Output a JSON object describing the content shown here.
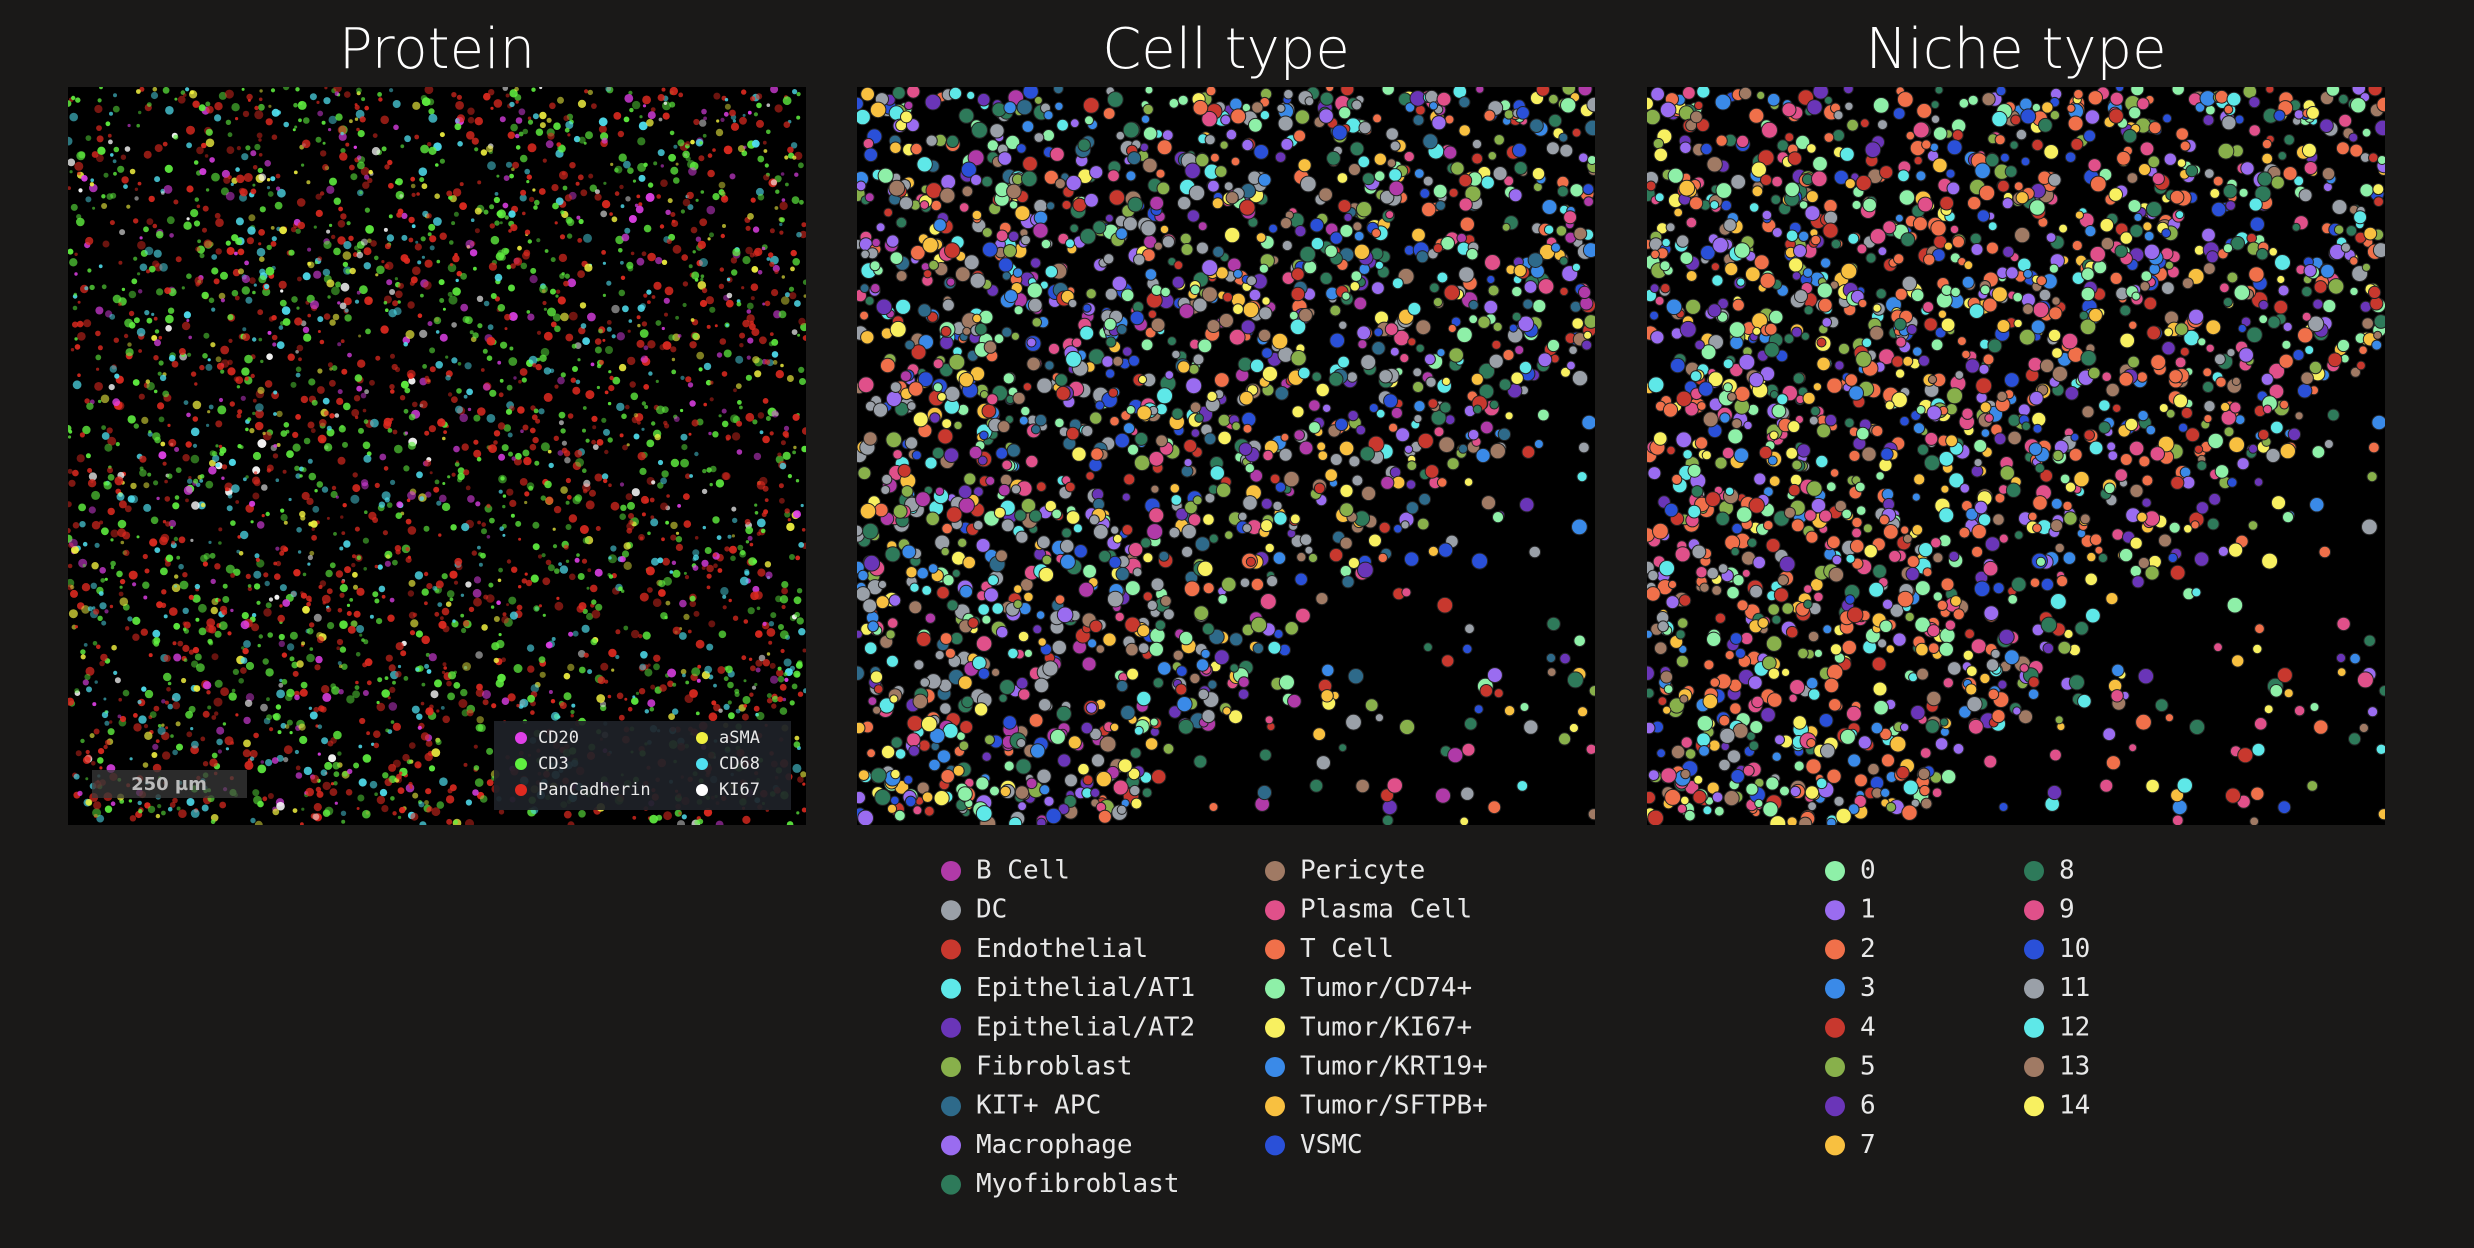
{
  "panels": [
    {
      "title": "Protein",
      "scale_bar": "250 µm",
      "legend": [
        {
          "label": "CD20",
          "color": "#e040e8"
        },
        {
          "label": "CD3",
          "color": "#60f040"
        },
        {
          "label": "PanCadherin",
          "color": "#e02a20"
        },
        {
          "label": "aSMA",
          "color": "#f0f040"
        },
        {
          "label": "CD68",
          "color": "#50e0f0"
        },
        {
          "label": "KI67",
          "color": "#ffffff"
        }
      ]
    },
    {
      "title": "Cell type",
      "legend": [
        {
          "label": "B Cell",
          "color": "#b03aa8"
        },
        {
          "label": "DC",
          "color": "#9aa0a8"
        },
        {
          "label": "Endothelial",
          "color": "#c8382e"
        },
        {
          "label": "Epithelial/AT1",
          "color": "#5ee8e8"
        },
        {
          "label": "Epithelial/AT2",
          "color": "#6a35b8"
        },
        {
          "label": "Fibroblast",
          "color": "#88b04b"
        },
        {
          "label": "KIT+ APC",
          "color": "#2e6a8a"
        },
        {
          "label": "Macrophage",
          "color": "#9a6cf0"
        },
        {
          "label": "Myofibroblast",
          "color": "#2e7a5a"
        },
        {
          "label": "Pericyte",
          "color": "#a07a64"
        },
        {
          "label": "Plasma Cell",
          "color": "#e0508a"
        },
        {
          "label": "T Cell",
          "color": "#f0704a"
        },
        {
          "label": "Tumor/CD74+",
          "color": "#8ef0a8"
        },
        {
          "label": "Tumor/KI67+",
          "color": "#f8f060"
        },
        {
          "label": "Tumor/KRT19+",
          "color": "#3a8ae8"
        },
        {
          "label": "Tumor/SFTPB+",
          "color": "#f8c040"
        },
        {
          "label": "VSMC",
          "color": "#2a50d8"
        }
      ]
    },
    {
      "title": "Niche type",
      "legend": [
        {
          "label": "0",
          "color": "#8ef0a8"
        },
        {
          "label": "1",
          "color": "#9a6cf0"
        },
        {
          "label": "2",
          "color": "#f0704a"
        },
        {
          "label": "3",
          "color": "#3a8ae8"
        },
        {
          "label": "4",
          "color": "#c8382e"
        },
        {
          "label": "5",
          "color": "#88b04b"
        },
        {
          "label": "6",
          "color": "#6a35b8"
        },
        {
          "label": "7",
          "color": "#f8c040"
        },
        {
          "label": "8",
          "color": "#2e7a5a"
        },
        {
          "label": "9",
          "color": "#e0508a"
        },
        {
          "label": "10",
          "color": "#2a50d8"
        },
        {
          "label": "11",
          "color": "#9aa0a8"
        },
        {
          "label": "12",
          "color": "#5ee8e8"
        },
        {
          "label": "13",
          "color": "#a07a64"
        },
        {
          "label": "14",
          "color": "#f8f060"
        }
      ]
    }
  ]
}
